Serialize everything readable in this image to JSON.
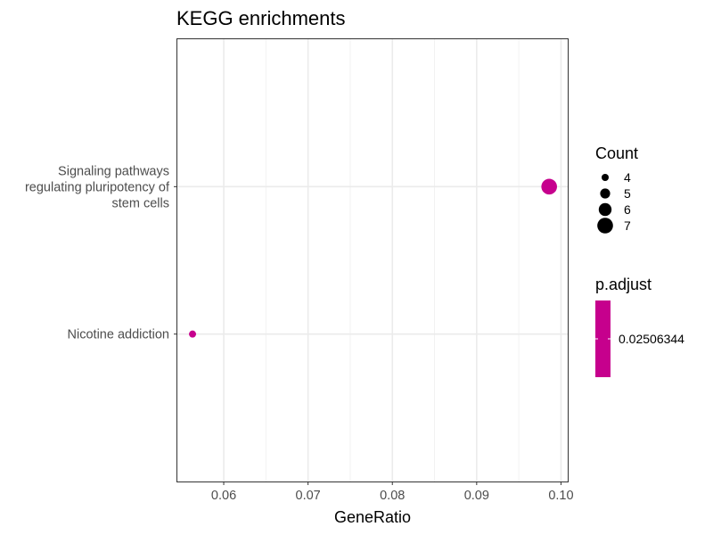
{
  "chart_data": {
    "type": "scatter",
    "title": "KEGG enrichments",
    "xlabel": "GeneRatio",
    "ylabel": "",
    "xlim": [
      0.0545,
      0.1008
    ],
    "xticks": [
      0.06,
      0.07,
      0.08,
      0.09,
      0.1
    ],
    "xtick_labels": [
      "0.06",
      "0.07",
      "0.08",
      "0.09",
      "0.10"
    ],
    "categories": [
      "Signaling pathways\nregulating pluripotency of\nstem cells",
      "Nicotine addiction"
    ],
    "points": [
      {
        "category": "Signaling pathways\nregulating pluripotency of\nstem cells",
        "x": 0.0986,
        "count": 7,
        "p_adjust": 0.02506344
      },
      {
        "category": "Nicotine addiction",
        "x": 0.0563,
        "count": 4,
        "p_adjust": 0.02506344
      }
    ],
    "point_color": "#C6008D",
    "grid": true,
    "legend_position": "right",
    "size_legend": {
      "title": "Count",
      "values": [
        4,
        5,
        6,
        7
      ],
      "labels": [
        "4",
        "5",
        "6",
        "7"
      ]
    },
    "color_legend": {
      "title": "p.adjust",
      "labels": [
        "0.02506344"
      ],
      "color": "#C6008D"
    }
  }
}
